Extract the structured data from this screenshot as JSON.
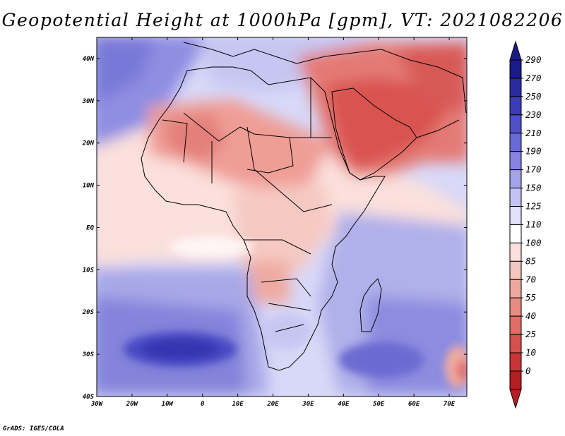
{
  "title": "Geopotential Height at 1000hPa [gpm], VT: 2021082206",
  "credit": "GrADS: IGES/COLA",
  "lon_ticks": [
    "30W",
    "20W",
    "10W",
    "0",
    "10E",
    "20E",
    "30E",
    "40E",
    "50E",
    "60E",
    "70E"
  ],
  "lat_ticks": [
    "40N",
    "30N",
    "20N",
    "10N",
    "EQ",
    "10S",
    "20S",
    "30S",
    "40S"
  ],
  "colorbar": {
    "labels": [
      "290",
      "270",
      "250",
      "230",
      "210",
      "190",
      "170",
      "150",
      "125",
      "110",
      "100",
      "85",
      "70",
      "55",
      "40",
      "25",
      "10",
      "0"
    ],
    "colors": [
      "#1a1a8a",
      "#2b2ba0",
      "#3c3cb8",
      "#5050c8",
      "#6a6ad6",
      "#8585e0",
      "#a3a3ea",
      "#c3c3f3",
      "#e2e2fb",
      "#ffffff",
      "#fbe0dc",
      "#f5c4bc",
      "#efa89e",
      "#e88c82",
      "#e06e66",
      "#d6504c",
      "#c93434",
      "#b51e22"
    ]
  },
  "map": {
    "region": "Africa and Middle East",
    "lon_range": [
      -30,
      75
    ],
    "lat_range": [
      -40,
      45
    ],
    "variable": "Geopotential Height",
    "level": "1000hPa",
    "units": "gpm",
    "valid_time": "2021082206"
  }
}
